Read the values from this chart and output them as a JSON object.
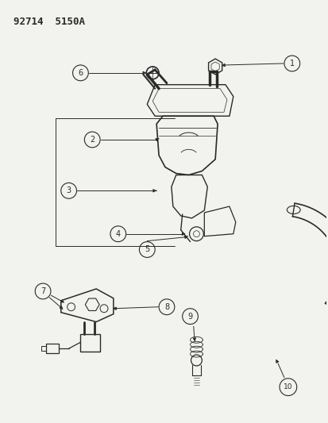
{
  "title": "92714  5150A",
  "bg": "#f2f2ee",
  "lc": "#2a2a2a",
  "fig_w": 4.14,
  "fig_h": 5.33,
  "dpi": 100
}
